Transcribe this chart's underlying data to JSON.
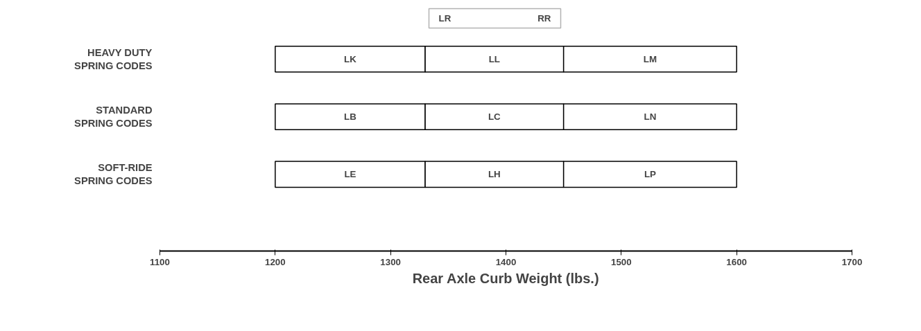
{
  "chart_data": {
    "type": "bar",
    "orientation": "horizontal",
    "xlabel": "Rear Axle Curb Weight (lbs.)",
    "categories": [
      "HEAVY DUTY\nSPRING CODES",
      "STANDARD\nSPRING CODES",
      "SOFT-RIDE\nSPRING CODES"
    ],
    "series": [
      {
        "color": "#ffffff",
        "base": [
          1200,
          1200,
          1200
        ],
        "values": [
          130,
          130,
          130
        ],
        "value_labels": [
          "LK",
          "LB",
          "LE"
        ]
      },
      {
        "color": "#ffffff",
        "base": [
          1330,
          1330,
          1330
        ],
        "values": [
          120,
          120,
          120
        ],
        "value_labels": [
          "LL",
          "LC",
          "LH"
        ]
      },
      {
        "color": "#ffffff",
        "base": [
          1450,
          1450,
          1450
        ],
        "values": [
          150,
          150,
          150
        ],
        "value_labels": [
          "LM",
          "LN",
          "LP"
        ]
      }
    ],
    "xlim": [
      1100,
      1700
    ],
    "xticks": [
      1100,
      1200,
      1300,
      1400,
      1500,
      1600,
      1700
    ],
    "grid": false,
    "annotations": [
      "LR",
      "RR"
    ]
  }
}
